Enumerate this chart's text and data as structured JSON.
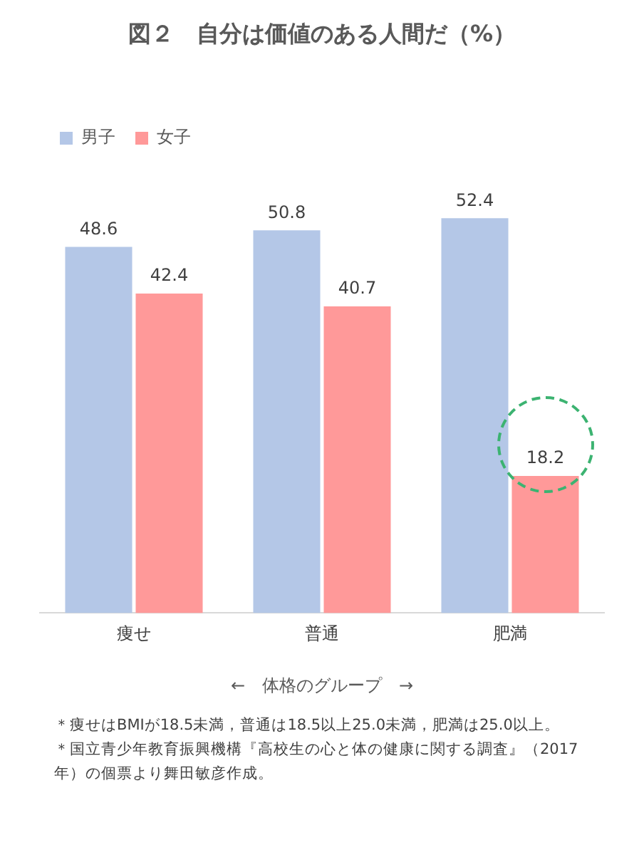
{
  "chart_data": {
    "type": "bar",
    "title": "図２　自分は価値のある人間だ（%）",
    "xlabel": "←　体格のグループ　→",
    "categories": [
      "痩せ",
      "普通",
      "肥満"
    ],
    "series": [
      {
        "name": "男子",
        "color": "#b4c7e7",
        "values": [
          48.6,
          50.8,
          52.4
        ]
      },
      {
        "name": "女子",
        "color": "#ff9999",
        "values": [
          42.4,
          40.7,
          18.2
        ]
      }
    ],
    "tick_labels": "x",
    "grid": false,
    "legend": "top left",
    "data_labels": true,
    "annotations": [
      "＊痩せはBMIが18.5未満，普通は18.5以上25.0未満，肥満は25.0以上。",
      "＊国立青少年教育振興機構『高校生の心と体の健康に関する調査』（2017年）の個票より舞田敏彦作成。"
    ]
  }
}
